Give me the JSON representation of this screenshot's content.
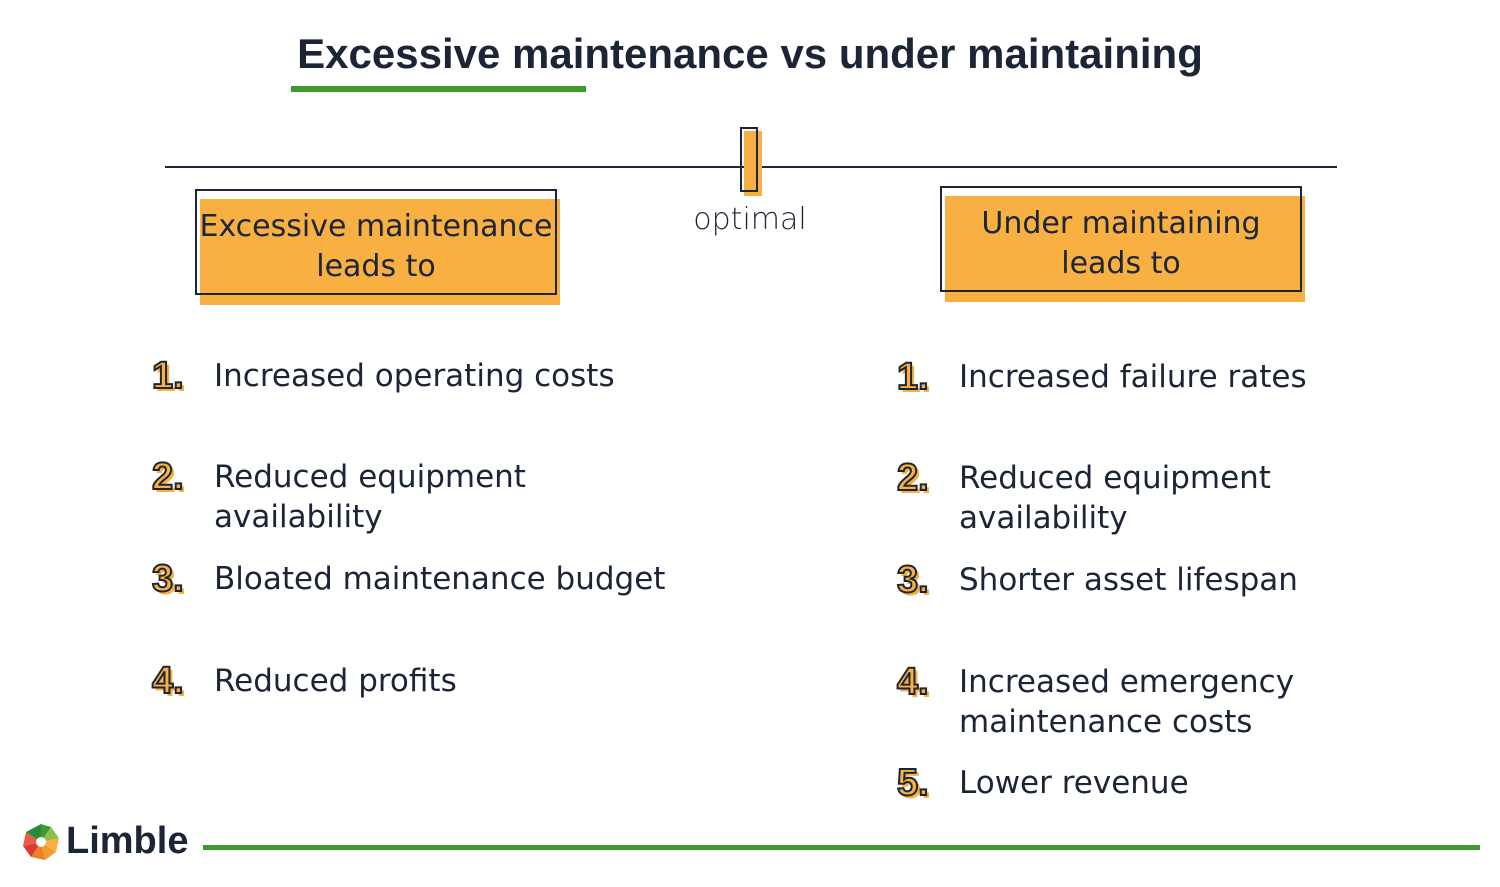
{
  "title": "Excessive maintenance vs under maintaining",
  "optimal_label": "optimal",
  "left": {
    "heading_line1": "Excessive maintenance",
    "heading_line2": "leads to",
    "items": [
      {
        "num": "1.",
        "text": "Increased operating costs"
      },
      {
        "num": "2.",
        "text": "Reduced equipment availability"
      },
      {
        "num": "3.",
        "text": "Bloated maintenance budget"
      },
      {
        "num": "4.",
        "text": "Reduced profits"
      }
    ]
  },
  "right": {
    "heading_line1": "Under maintaining",
    "heading_line2": "leads to",
    "items": [
      {
        "num": "1.",
        "text": "Increased failure rates"
      },
      {
        "num": "2.",
        "text": "Reduced equipment availability"
      },
      {
        "num": "3.",
        "text": "Shorter asset lifespan"
      },
      {
        "num": "4.",
        "text": "Increased emergency maintenance costs"
      },
      {
        "num": "5.",
        "text": "Lower revenue"
      }
    ]
  },
  "logo": {
    "text": "Limble",
    "icon": "gear-logo-icon"
  },
  "colors": {
    "dark": "#1c2536",
    "orange": "#f7b041",
    "green": "#3f9a2b"
  }
}
